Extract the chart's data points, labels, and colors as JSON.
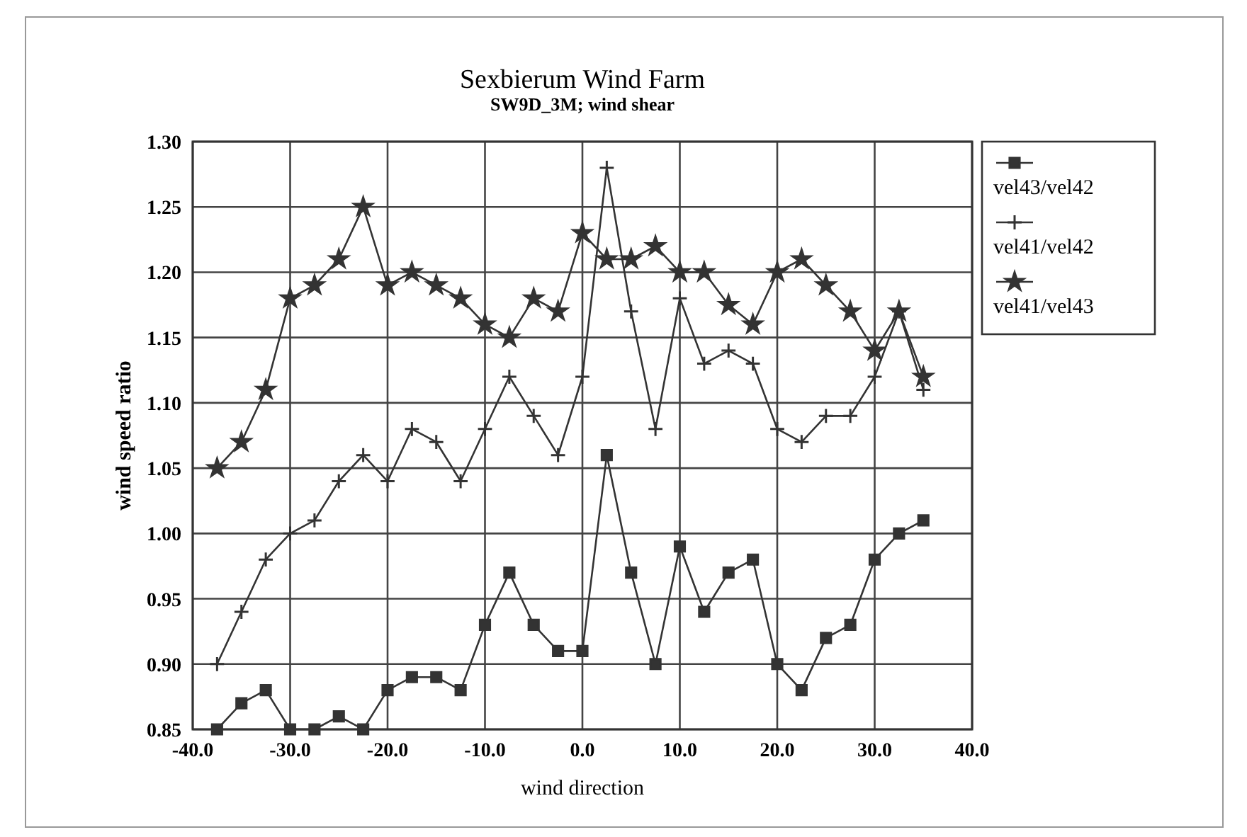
{
  "chart_data": {
    "type": "line",
    "title": "Sexbierum Wind Farm",
    "subtitle": "SW9D_3M; wind shear",
    "xlabel": "wind direction",
    "ylabel": "wind speed ratio",
    "x": [
      -37.5,
      -35,
      -32.5,
      -30,
      -27.5,
      -25,
      -22.5,
      -20,
      -17.5,
      -15,
      -12.5,
      -10,
      -7.5,
      -5,
      -2.5,
      0,
      2.5,
      5,
      7.5,
      10,
      12.5,
      15,
      17.5,
      20,
      22.5,
      25,
      27.5,
      30,
      32.5,
      35
    ],
    "series": [
      {
        "name": "vel43/vel42",
        "color": "#333333",
        "marker": "square",
        "values": [
          0.85,
          0.87,
          0.88,
          0.85,
          0.85,
          0.86,
          0.85,
          0.88,
          0.89,
          0.89,
          0.88,
          0.93,
          0.97,
          0.93,
          0.91,
          0.91,
          1.06,
          0.97,
          0.9,
          0.99,
          0.94,
          0.97,
          0.98,
          0.9,
          0.88,
          0.92,
          0.93,
          0.98,
          1.0,
          1.01
        ]
      },
      {
        "name": "vel41/vel42",
        "color": "#333333",
        "marker": "cross",
        "values": [
          0.9,
          0.94,
          0.98,
          1.0,
          1.01,
          1.04,
          1.06,
          1.04,
          1.08,
          1.07,
          1.04,
          1.08,
          1.12,
          1.09,
          1.06,
          1.12,
          1.28,
          1.17,
          1.08,
          1.18,
          1.13,
          1.14,
          1.13,
          1.08,
          1.07,
          1.09,
          1.09,
          1.12,
          1.17,
          1.11
        ]
      },
      {
        "name": "vel41/vel43",
        "color": "#333333",
        "marker": "star",
        "values": [
          1.05,
          1.07,
          1.11,
          1.18,
          1.19,
          1.21,
          1.25,
          1.19,
          1.2,
          1.19,
          1.18,
          1.16,
          1.15,
          1.18,
          1.17,
          1.23,
          1.21,
          1.21,
          1.22,
          1.2,
          1.2,
          1.175,
          1.16,
          1.2,
          1.21,
          1.19,
          1.17,
          1.14,
          1.17,
          1.12
        ]
      }
    ],
    "xlim": [
      -40,
      40
    ],
    "xticks": [
      {
        "value": -40,
        "label": "-40.0"
      },
      {
        "value": -30,
        "label": "-30.0"
      },
      {
        "value": -20,
        "label": "-20.0"
      },
      {
        "value": -10,
        "label": "-10.0"
      },
      {
        "value": 0,
        "label": "0.0"
      },
      {
        "value": 10,
        "label": "10.0"
      },
      {
        "value": 20,
        "label": "20.0"
      },
      {
        "value": 30,
        "label": "30.0"
      },
      {
        "value": 40,
        "label": "40.0"
      }
    ],
    "ylim": [
      0.85,
      1.3
    ],
    "yticks": [
      {
        "value": 0.85,
        "label": "0.85"
      },
      {
        "value": 0.9,
        "label": "0.90"
      },
      {
        "value": 0.95,
        "label": "0.95"
      },
      {
        "value": 1.0,
        "label": "1.00"
      },
      {
        "value": 1.05,
        "label": "1.05"
      },
      {
        "value": 1.1,
        "label": "1.10"
      },
      {
        "value": 1.15,
        "label": "1.15"
      },
      {
        "value": 1.2,
        "label": "1.20"
      },
      {
        "value": 1.25,
        "label": "1.25"
      },
      {
        "value": 1.3,
        "label": "1.30"
      }
    ],
    "grid": true,
    "legend": "right",
    "line_style": "solid"
  }
}
